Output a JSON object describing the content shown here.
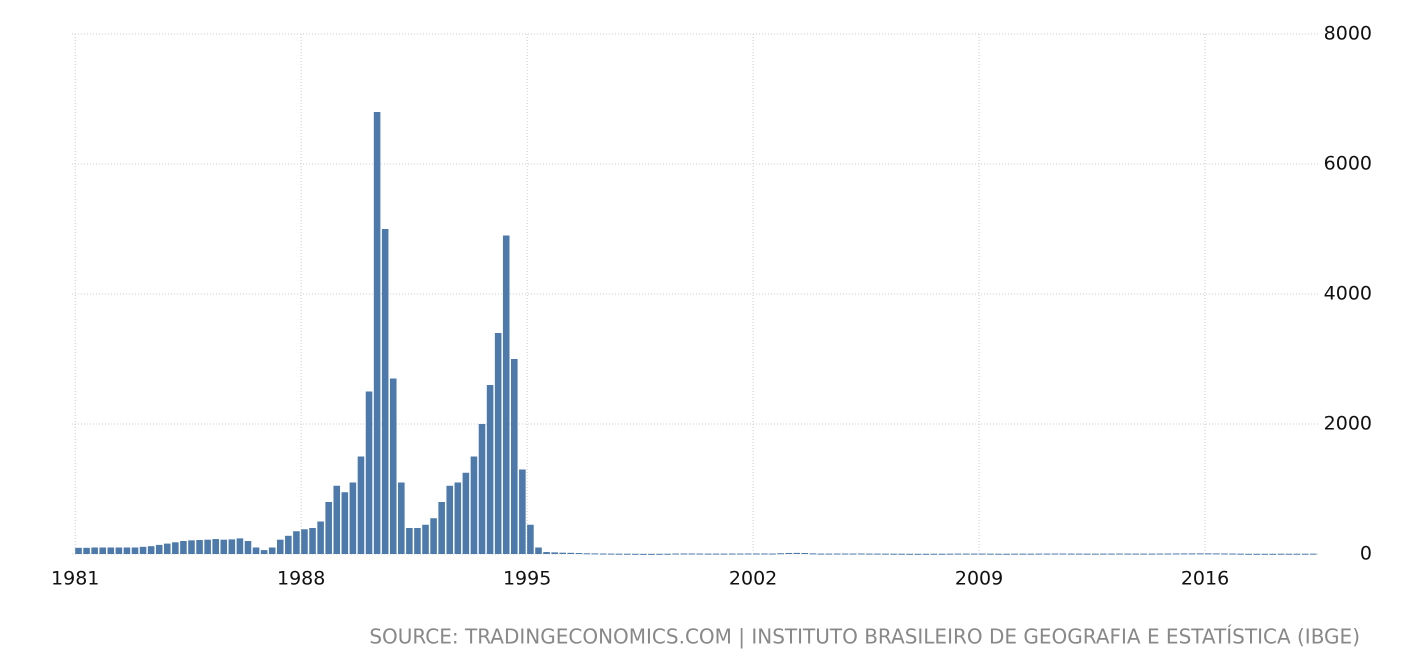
{
  "chart_data": {
    "type": "bar",
    "color": "#4d7aaa",
    "grid": true,
    "source": "SOURCE: TRADINGECONOMICS.COM | INSTITUTO BRASILEIRO DE GEOGRAFIA E ESTATÍSTICA (IBGE)",
    "x": [
      1981,
      1981.25,
      1981.5,
      1981.75,
      1982,
      1982.25,
      1982.5,
      1982.75,
      1983,
      1983.25,
      1983.5,
      1983.75,
      1984,
      1984.25,
      1984.5,
      1984.75,
      1985,
      1985.25,
      1985.5,
      1985.75,
      1986,
      1986.25,
      1986.5,
      1986.75,
      1987,
      1987.25,
      1987.5,
      1987.75,
      1988,
      1988.25,
      1988.5,
      1988.75,
      1989,
      1989.25,
      1989.5,
      1989.75,
      1990,
      1990.25,
      1990.5,
      1990.75,
      1991,
      1991.25,
      1991.5,
      1991.75,
      1992,
      1992.25,
      1992.5,
      1992.75,
      1993,
      1993.25,
      1993.5,
      1993.75,
      1994,
      1994.25,
      1994.5,
      1994.75,
      1995,
      1995.25,
      1995.5,
      1995.75,
      1996,
      1996.25,
      1996.5,
      1996.75,
      1997,
      1997.25,
      1997.5,
      1997.75,
      1998,
      1998.25,
      1998.5,
      1998.75,
      1999,
      1999.25,
      1999.5,
      1999.75,
      2000,
      2000.25,
      2000.5,
      2000.75,
      2001,
      2001.25,
      2001.5,
      2001.75,
      2002,
      2002.25,
      2002.5,
      2002.75,
      2003,
      2003.25,
      2003.5,
      2003.75,
      2004,
      2004.25,
      2004.5,
      2004.75,
      2005,
      2005.25,
      2005.5,
      2005.75,
      2006,
      2006.25,
      2006.5,
      2006.75,
      2007,
      2007.25,
      2007.5,
      2007.75,
      2008,
      2008.25,
      2008.5,
      2008.75,
      2009,
      2009.25,
      2009.5,
      2009.75,
      2010,
      2010.25,
      2010.5,
      2010.75,
      2011,
      2011.25,
      2011.5,
      2011.75,
      2012,
      2012.25,
      2012.5,
      2012.75,
      2013,
      2013.25,
      2013.5,
      2013.75,
      2014,
      2014.25,
      2014.5,
      2014.75,
      2015,
      2015.25,
      2015.5,
      2015.75,
      2016,
      2016.25,
      2016.5,
      2016.75,
      2017,
      2017.25,
      2017.5,
      2017.75,
      2018,
      2018.25,
      2018.5,
      2018.75,
      2019,
      2019.25
    ],
    "values": [
      95,
      95,
      100,
      100,
      100,
      100,
      100,
      100,
      110,
      120,
      140,
      160,
      180,
      200,
      210,
      215,
      220,
      230,
      220,
      225,
      240,
      200,
      100,
      60,
      100,
      220,
      280,
      350,
      380,
      400,
      500,
      800,
      1050,
      950,
      1100,
      1500,
      2500,
      6800,
      5000,
      2700,
      1100,
      400,
      400,
      450,
      550,
      800,
      1050,
      1100,
      1250,
      1500,
      2000,
      2600,
      3400,
      4900,
      3000,
      1300,
      450,
      100,
      30,
      25,
      20,
      18,
      15,
      11,
      9,
      7,
      6,
      5,
      4,
      3,
      2,
      2,
      3,
      4,
      7,
      8,
      8,
      7,
      6,
      6,
      6,
      7,
      7,
      8,
      8,
      8,
      7,
      12,
      16,
      17,
      15,
      10,
      6,
      6,
      7,
      7,
      7,
      8,
      6,
      6,
      5,
      4,
      4,
      3,
      3,
      3,
      4,
      4,
      5,
      6,
      6,
      6,
      6,
      5,
      4,
      4,
      5,
      5,
      5,
      6,
      6,
      7,
      7,
      6,
      6,
      5,
      5,
      6,
      6,
      7,
      6,
      6,
      6,
      6,
      7,
      7,
      8,
      9,
      9,
      10,
      10,
      9,
      8,
      7,
      5,
      3,
      3,
      3,
      3,
      4,
      4,
      4,
      4,
      5
    ],
    "xlim": [
      1980.9,
      2019.5
    ],
    "xticks": [
      1981,
      1988,
      1995,
      2002,
      2009,
      2016
    ],
    "ylim": [
      0,
      8000
    ],
    "yticks": [
      0,
      2000,
      4000,
      6000,
      8000
    ]
  }
}
